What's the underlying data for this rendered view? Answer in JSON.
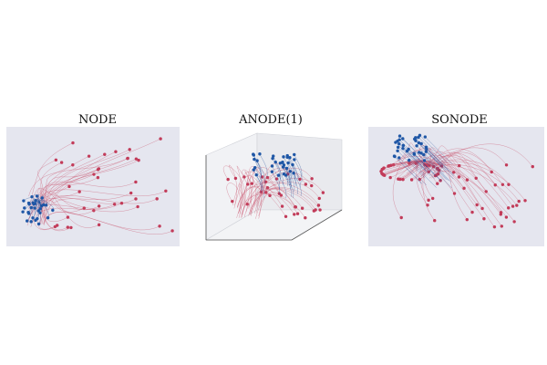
{
  "panels": [
    {
      "title": "NODE",
      "style": "2d"
    },
    {
      "title": "ANODE(1)",
      "style": "3d"
    },
    {
      "title": "SONODE",
      "style": "2d"
    }
  ],
  "colors": {
    "red_traj": "#c8506a",
    "red_point": "#c23b59",
    "blue_traj": "#1f4e9b",
    "blue_point": "#1f57a6",
    "panel_bg": "#e5e6ef",
    "pane_3d": "#eef0f4"
  }
}
